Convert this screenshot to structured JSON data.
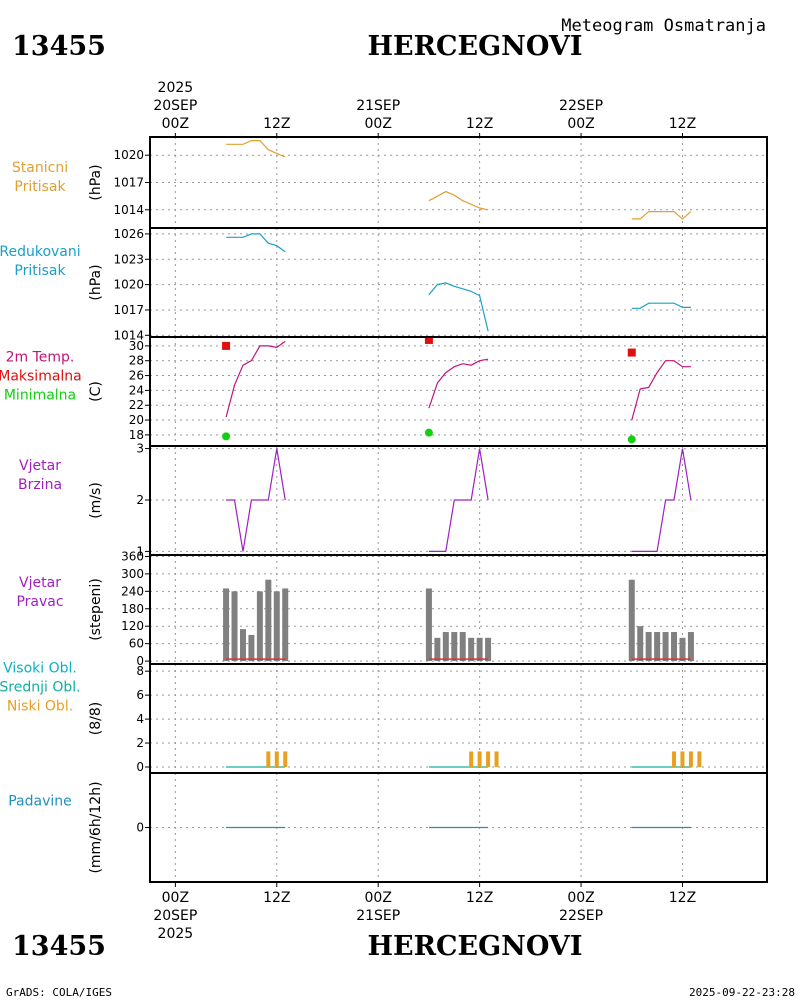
{
  "header": {
    "station_id": "13455",
    "station_name": "HERCEGNOVI",
    "subtitle": "Meteogram Osmatranja"
  },
  "footer": {
    "station_id": "13455",
    "station_name": "HERCEGNOVI",
    "credit": "GrADS: COLA/IGES",
    "timestamp": "2025-09-22-23:28"
  },
  "time_axis": {
    "top": {
      "year": "2025",
      "labels": [
        {
          "t": 0,
          "lines": [
            "20SEP",
            "00Z"
          ]
        },
        {
          "t": 12,
          "lines": [
            "12Z"
          ]
        },
        {
          "t": 24,
          "lines": [
            "21SEP",
            "00Z"
          ]
        },
        {
          "t": 36,
          "lines": [
            "12Z"
          ]
        },
        {
          "t": 48,
          "lines": [
            "22SEP",
            "00Z"
          ]
        },
        {
          "t": 60,
          "lines": [
            "12Z"
          ]
        }
      ]
    },
    "bottom": {
      "year": "2025",
      "labels": [
        {
          "t": 0,
          "lines": [
            "00Z",
            "20SEP"
          ]
        },
        {
          "t": 12,
          "lines": [
            "12Z"
          ]
        },
        {
          "t": 24,
          "lines": [
            "00Z",
            "21SEP"
          ]
        },
        {
          "t": 36,
          "lines": [
            "12Z"
          ]
        },
        {
          "t": 48,
          "lines": [
            "00Z",
            "22SEP"
          ]
        },
        {
          "t": 60,
          "lines": [
            "12Z"
          ]
        }
      ]
    },
    "range_hours": [
      -3,
      70
    ],
    "grid_hours": [
      0,
      12,
      24,
      36,
      48,
      60
    ]
  },
  "colors": {
    "station_pressure": "#e0a030",
    "reduced_pressure": "#1aa0c8",
    "temp_line": "#c0157e",
    "temp_max": "#e01010",
    "temp_min": "#10d010",
    "wind": "#a020c0",
    "bars": "#808080",
    "bar_base": "#e03030",
    "cloud_high": "#10b0c0",
    "cloud_mid": "#10b0a0",
    "cloud_low": "#e8a020",
    "precip": "#2090c0"
  },
  "chart_data": [
    {
      "id": "station_pressure",
      "type": "line",
      "labels": [
        "Stanicni",
        "Pritisak"
      ],
      "ylabel": "(hPa)",
      "ylim": [
        1012,
        1022
      ],
      "yticks": [
        1014,
        1017,
        1020
      ],
      "segments": [
        {
          "t": [
            6,
            7,
            8,
            9,
            10,
            11,
            12,
            13
          ],
          "values": [
            1021.2,
            1021.2,
            1021.2,
            1021.6,
            1021.6,
            1020.6,
            1020.2,
            1019.8
          ]
        },
        {
          "t": [
            30,
            31,
            32,
            33,
            34,
            35,
            36,
            37
          ],
          "values": [
            1015.0,
            1015.5,
            1016.0,
            1015.6,
            1015.0,
            1014.6,
            1014.2,
            1014.0
          ]
        },
        {
          "t": [
            54,
            55,
            56,
            57,
            58,
            59,
            60,
            61
          ],
          "values": [
            1013.0,
            1013.0,
            1013.8,
            1013.8,
            1013.8,
            1013.8,
            1013.0,
            1013.8
          ]
        }
      ]
    },
    {
      "id": "reduced_pressure",
      "type": "line",
      "labels": [
        "Redukovani",
        "Pritisak"
      ],
      "ylabel": "(hPa)",
      "ylim": [
        1013.8,
        1026.7
      ],
      "yticks": [
        1014,
        1017,
        1020,
        1023,
        1026
      ],
      "segments": [
        {
          "t": [
            6,
            7,
            8,
            9,
            10,
            11,
            12,
            13
          ],
          "values": [
            1025.6,
            1025.6,
            1025.6,
            1026.0,
            1026.0,
            1024.9,
            1024.6,
            1023.9
          ]
        },
        {
          "t": [
            30,
            31,
            32,
            33,
            34,
            35,
            36,
            37
          ],
          "values": [
            1018.8,
            1020.0,
            1020.2,
            1019.8,
            1019.5,
            1019.2,
            1018.7,
            1014.5
          ]
        },
        {
          "t": [
            54,
            55,
            56,
            57,
            58,
            59,
            60,
            61
          ],
          "values": [
            1017.2,
            1017.2,
            1017.8,
            1017.8,
            1017.8,
            1017.8,
            1017.3,
            1017.3
          ]
        }
      ]
    },
    {
      "id": "temperature",
      "type": "line",
      "labels": [
        "2m Temp.",
        "Maksimalna",
        "Minimalna"
      ],
      "ylabel": "(C)",
      "ylim": [
        16.5,
        31.2
      ],
      "yticks": [
        18,
        20,
        22,
        24,
        26,
        28,
        30
      ],
      "segments": [
        {
          "t": [
            6,
            7,
            8,
            9,
            10,
            11,
            12,
            13
          ],
          "values": [
            20.4,
            24.7,
            27.4,
            28.0,
            30.0,
            30.0,
            29.8,
            30.6
          ]
        },
        {
          "t": [
            30,
            31,
            32,
            33,
            34,
            35,
            36,
            37
          ],
          "values": [
            21.6,
            25.0,
            26.4,
            27.2,
            27.6,
            27.4,
            28.0,
            28.2
          ]
        },
        {
          "t": [
            54,
            55,
            56,
            57,
            58,
            59,
            60,
            61
          ],
          "values": [
            20.0,
            24.2,
            24.4,
            26.4,
            28.0,
            28.0,
            27.2,
            27.2
          ]
        }
      ],
      "max_markers": [
        {
          "t": 6,
          "value": 30.0
        },
        {
          "t": 30,
          "value": 30.8
        },
        {
          "t": 54,
          "value": 29.1
        }
      ],
      "min_markers": [
        {
          "t": 6,
          "value": 17.8
        },
        {
          "t": 30,
          "value": 18.3
        },
        {
          "t": 54,
          "value": 17.4
        }
      ]
    },
    {
      "id": "wind_speed",
      "type": "line",
      "labels": [
        "Vjetar",
        "Brzina"
      ],
      "ylabel": "(m/s)",
      "ylim": [
        0.93,
        3.05
      ],
      "yticks": [
        1,
        2,
        3
      ],
      "segments": [
        {
          "t": [
            6,
            7,
            8,
            9,
            10,
            11,
            12,
            13
          ],
          "values": [
            2,
            2,
            1,
            2,
            2,
            2,
            3,
            2
          ]
        },
        {
          "t": [
            30,
            31,
            32,
            33,
            34,
            35,
            36,
            37
          ],
          "values": [
            1,
            1,
            1,
            2,
            2,
            2,
            3,
            2
          ]
        },
        {
          "t": [
            54,
            55,
            56,
            57,
            58,
            59,
            60,
            61
          ],
          "values": [
            1,
            1,
            1,
            1,
            2,
            2,
            3,
            2
          ]
        }
      ]
    },
    {
      "id": "wind_direction",
      "type": "bar",
      "labels": [
        "Vjetar",
        "Pravac"
      ],
      "ylabel": "(stepeni)",
      "ylim": [
        -10,
        365
      ],
      "yticks": [
        0,
        60,
        120,
        180,
        240,
        300,
        360
      ],
      "bar_hours": [
        6,
        7,
        8,
        9,
        10,
        11,
        12,
        13,
        30,
        31,
        32,
        33,
        34,
        35,
        36,
        37,
        54,
        55,
        56,
        57,
        58,
        59,
        60,
        61
      ],
      "bar_values": [
        250,
        240,
        110,
        90,
        240,
        280,
        240,
        250,
        250,
        80,
        100,
        100,
        100,
        80,
        80,
        80,
        280,
        120,
        100,
        100,
        100,
        100,
        80,
        100
      ]
    },
    {
      "id": "clouds",
      "type": "bar",
      "labels": [
        "Visoki Obl.",
        "Srednji Obl.",
        "Niski Obl."
      ],
      "ylabel": "(8/8)",
      "ylim": [
        -0.5,
        8.6
      ],
      "yticks": [
        0,
        2,
        4,
        6,
        8
      ],
      "segments_flat": [
        {
          "t": [
            6,
            7,
            8,
            9,
            10,
            11,
            12,
            13
          ],
          "values": [
            0,
            0,
            0,
            0,
            0,
            0,
            0,
            0
          ]
        },
        {
          "t": [
            30,
            31,
            32,
            33,
            34,
            35,
            36,
            37
          ],
          "values": [
            0,
            0,
            0,
            0,
            0,
            0,
            0,
            0
          ]
        },
        {
          "t": [
            54,
            55,
            56,
            57,
            58,
            59,
            60,
            61
          ],
          "values": [
            0,
            0,
            0,
            0,
            0,
            0,
            0,
            0
          ]
        }
      ],
      "low_bar_hours": [
        11,
        12,
        13,
        35,
        36,
        37,
        38,
        59,
        60,
        61,
        62
      ],
      "low_bar_values": [
        1.3,
        1.3,
        1.3,
        1.3,
        1.3,
        1.3,
        1.3,
        1.3,
        1.3,
        1.3,
        1.3
      ]
    },
    {
      "id": "precipitation",
      "type": "line",
      "labels": [
        "Padavine"
      ],
      "ylabel": "(mm/6h/12h)",
      "ylim": [
        -1,
        1
      ],
      "yticks": [
        0
      ],
      "segments": [
        {
          "t": [
            6,
            13
          ],
          "values": [
            0,
            0
          ]
        },
        {
          "t": [
            30,
            37
          ],
          "values": [
            0,
            0
          ]
        },
        {
          "t": [
            54,
            61
          ],
          "values": [
            0,
            0
          ]
        }
      ]
    }
  ]
}
